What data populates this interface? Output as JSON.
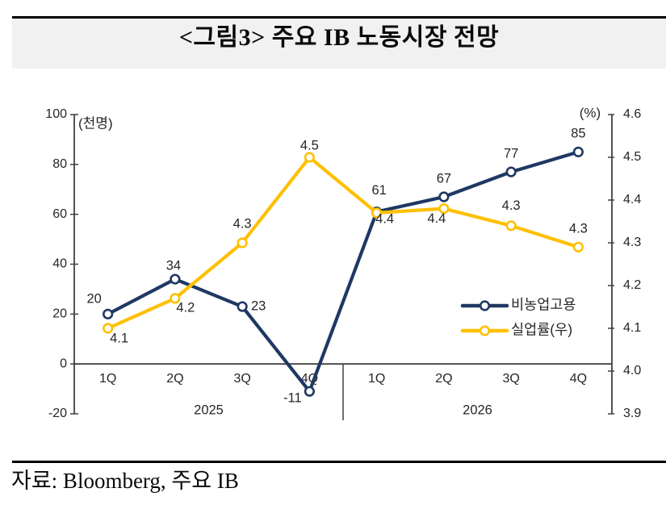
{
  "title": "<그림3> 주요 IB 노동시장 전망",
  "source": "자료: Bloomberg,  주요 IB",
  "colors": {
    "series_navy": "#1F3864",
    "series_gold": "#FFC000",
    "axis": "#404040",
    "text": "#262626",
    "title_band_bg": "#F1F1F1",
    "rule": "#000000"
  },
  "chart_data": {
    "type": "line",
    "title": "<그림3> 주요 IB 노동시장 전망",
    "categories": [
      "1Q",
      "2Q",
      "3Q",
      "4Q",
      "1Q",
      "2Q",
      "3Q",
      "4Q"
    ],
    "year_groups": [
      {
        "label": "2025",
        "span": 4
      },
      {
        "label": "2026",
        "span": 4
      }
    ],
    "left_axis": {
      "unit_label": "(천명)",
      "min": -20,
      "max": 100,
      "ticks": [
        "100",
        "80",
        "60",
        "40",
        "20",
        "0",
        "-20"
      ]
    },
    "right_axis": {
      "unit_label": "(%)",
      "min": 3.9,
      "max": 4.6,
      "ticks": [
        "4.6",
        "4.5",
        "4.4",
        "4.3",
        "4.2",
        "4.1",
        "4.0",
        "3.9"
      ]
    },
    "series": [
      {
        "id": "nonfarm-payrolls",
        "name": "비농업고용",
        "axis": "left",
        "color": "#1F3864",
        "values": [
          20,
          34,
          23,
          -11,
          61,
          67,
          77,
          85
        ],
        "point_labels": [
          "20",
          "34",
          "23",
          "-11",
          "61",
          "67",
          "77",
          "85"
        ]
      },
      {
        "id": "unemployment-rate",
        "name": "실업률(우)",
        "axis": "right",
        "color": "#FFC000",
        "values": [
          4.1,
          4.2,
          4.3,
          4.5,
          4.4,
          4.4,
          4.3,
          4.3
        ],
        "plotted_values": [
          4.1,
          4.17,
          4.3,
          4.5,
          4.37,
          4.38,
          4.34,
          4.29
        ],
        "point_labels": [
          "4.1",
          "4.2",
          "4.3",
          "4.5",
          "4.4",
          "4.4",
          "4.3",
          "4.3"
        ]
      }
    ],
    "legend": {
      "position": "inside-right",
      "entries": [
        "비농업고용",
        "실업률(우)"
      ]
    },
    "grid": false
  }
}
